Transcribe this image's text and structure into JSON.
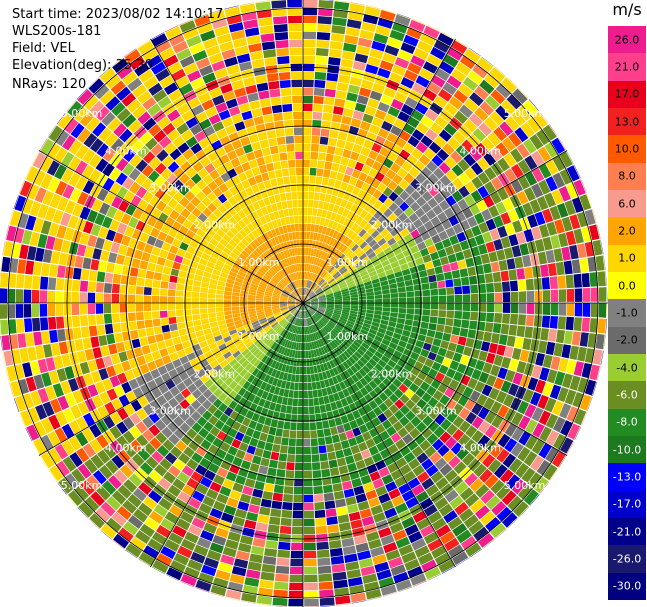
{
  "header": {
    "start_time": "Start time: 2023/08/02 14:10:17",
    "instrument": "WLS200s-181",
    "field": "Field: VEL",
    "elevation": "Elevation(deg): 35.30",
    "nrays": "NRays: 120"
  },
  "colorbar": {
    "unit": "m/s",
    "levels": [
      "26.0",
      "21.0",
      "17.0",
      "13.0",
      "10.0",
      "8.0",
      "6.0",
      "2.0",
      "1.0",
      "0.0",
      "-1.0",
      "-2.0",
      "-4.0",
      "-6.0",
      "-8.0",
      "-10.0",
      "-13.0",
      "-17.0",
      "-21.0",
      "-26.0",
      "-30.0"
    ],
    "colors": [
      "#ee1c8f",
      "#ff3f8c",
      "#e8001c",
      "#f32020",
      "#ff5a00",
      "#ff7f50",
      "#f99a8f",
      "#ffa500",
      "#ffd700",
      "#ffff00",
      "#808080",
      "#6b6b6b",
      "#9acd32",
      "#6b8e23",
      "#228b22",
      "#1e7a1e",
      "#0000ff",
      "#0000cd",
      "#00008b",
      "#191970",
      "#000080"
    ]
  },
  "chart_data": {
    "type": "heatmap",
    "title": "",
    "projection": "polar PPI",
    "field": "VEL",
    "units": "m/s",
    "nrays": 120,
    "elevation_deg": 35.3,
    "range_rings_km": [
      1,
      2,
      3,
      4,
      5
    ],
    "range_ring_labels": [
      "1.00km",
      "2.00km",
      "3.00km",
      "4.00km",
      "5.00km"
    ],
    "colorbar_range": [
      -30,
      26
    ],
    "pattern": "near-field: positive velocities (yellow/orange) to the north-west, negative (green) to the south-east; outer gates noisy across full range"
  }
}
